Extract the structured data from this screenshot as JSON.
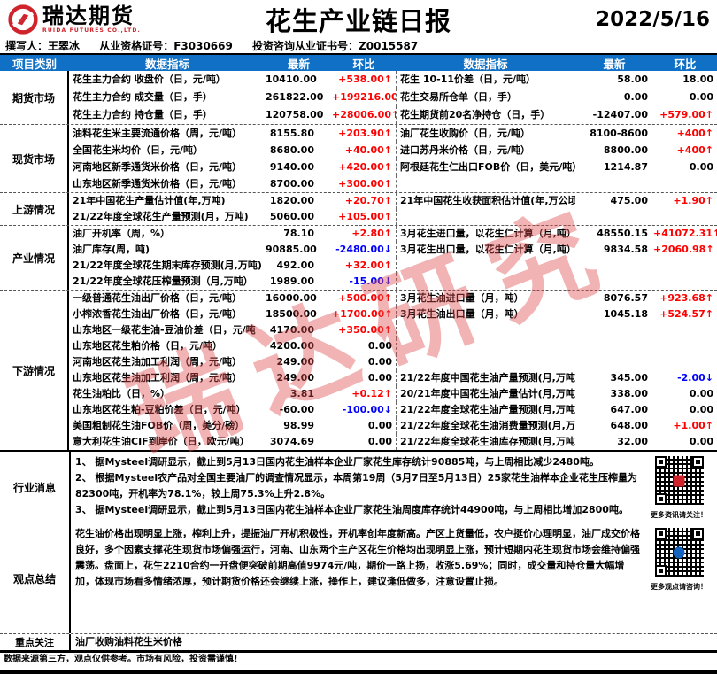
{
  "meta": {
    "title": "花生产业链日报",
    "date": "2022/5/16"
  },
  "logo": {
    "cn": "瑞达期货",
    "en": "RUIDA FUTURES CO.,LTD."
  },
  "byline": {
    "author": "撰写人：王翠冰",
    "cert": "从业资格证号：F3030669",
    "advisory": "投资咨询从业证书号：Z0015587"
  },
  "columns": {
    "category": "项目类别",
    "indicator": "数据指标",
    "latest": "最新",
    "chg": "环比"
  },
  "sections": [
    {
      "category": "期货市场",
      "rows": [
        {
          "ll": "花生主力合约 收盘价（日，元/吨）",
          "lv": "10410.00",
          "lc": "+538.00↑",
          "ld": "up",
          "rl": "花生 10-11价差（日，元/吨）",
          "rv": "58.00",
          "rc": "18.00",
          "rd": "flat"
        },
        {
          "ll": "花生主力合约 成交量（日，手）",
          "lv": "261822.00",
          "lc": "+199216.00↑",
          "ld": "up",
          "rl": "花生交易所仓单（日，手）",
          "rv": "0.00",
          "rc": "0.00",
          "rd": "flat"
        },
        {
          "ll": "花生主力合约 持仓量（日，手）",
          "lv": "120758.00",
          "lc": "+28006.00↑",
          "ld": "up",
          "rl": "花生期货前20名净持仓（日，手）",
          "rv": "-12407.00",
          "rc": "+579.00↑",
          "rd": "up"
        }
      ]
    },
    {
      "category": "现货市场",
      "rows": [
        {
          "ll": "油料花生米主要流通价格（周，元/吨）",
          "lv": "8155.80",
          "lc": "+203.90↑",
          "ld": "up",
          "rl": "油厂花生收购价（日，元/吨）",
          "rv": "8100-8600",
          "rc": "+400↑",
          "rd": "up"
        },
        {
          "ll": "全国花生米均价（日，元/吨）",
          "lv": "8680.00",
          "lc": "+40.00↑",
          "ld": "up",
          "rl": "进口苏丹米价格（日，元/吨）",
          "rv": "8800.00",
          "rc": "+400↑",
          "rd": "up"
        },
        {
          "ll": "河南地区新季通货米价格（日，元/吨）",
          "lv": "9140.00",
          "lc": "+420.00↑",
          "ld": "up",
          "rl": "阿根廷花生仁出口FOB价（日，美元/吨）",
          "rv": "1214.87",
          "rc": "0.00",
          "rd": "flat"
        },
        {
          "ll": "山东地区新季通货米价格（日，元/吨）",
          "lv": "8700.00",
          "lc": "+300.00↑",
          "ld": "up",
          "rl": "",
          "rv": "",
          "rc": "",
          "rd": "flat"
        }
      ]
    },
    {
      "category": "上游情况",
      "rows": [
        {
          "ll": "21年中国花生产量估计值(年,万吨)",
          "lv": "1820.00",
          "lc": "+20.70↑",
          "ld": "up",
          "rl": "21年中国花生收获面积估计值(年,万公顷)",
          "rv": "475.00",
          "rc": "+1.90↑",
          "rd": "up"
        },
        {
          "ll": "21/22年度全球花生产量预测(月，万吨)",
          "lv": "5060.00",
          "lc": "+105.00↑",
          "ld": "up",
          "rl": "",
          "rv": "",
          "rc": "",
          "rd": "flat"
        }
      ]
    },
    {
      "category": "产业情况",
      "rows": [
        {
          "ll": "油厂开机率（周，%）",
          "lv": "78.10",
          "lc": "+2.80↑",
          "ld": "up",
          "rl": "3月花生进口量，以花生仁计算（月,吨）",
          "rv": "48550.15",
          "rc": "+41072.31↑",
          "rd": "up"
        },
        {
          "ll": "油厂库存(周，吨)",
          "lv": "90885.00",
          "lc": "-2480.00↓",
          "ld": "down",
          "rl": "3月花生出口量，以花生仁计算（月,吨）",
          "rv": "9834.58",
          "rc": "+2060.98↑",
          "rd": "up"
        },
        {
          "ll": "21/22年度全球花生期末库存预测(月,万吨)",
          "lv": "492.00",
          "lc": "+32.00↑",
          "ld": "up",
          "rl": "",
          "rv": "",
          "rc": "",
          "rd": "flat"
        },
        {
          "ll": "21/22年度全球花压榨量预测（月,万吨）",
          "lv": "1989.00",
          "lc": "-15.00↓",
          "ld": "down",
          "rl": "",
          "rv": "",
          "rc": "",
          "rd": "flat"
        }
      ]
    },
    {
      "category": "下游情况",
      "rows": [
        {
          "ll": "一级普通花生油出厂价格（日，元/吨）",
          "lv": "16000.00",
          "lc": "+500.00↑",
          "ld": "up",
          "rl": "3月花生油进口量（月，吨）",
          "rv": "8076.57",
          "rc": "+923.68↑",
          "rd": "up"
        },
        {
          "ll": "小榨浓香花生油出厂价格（日，元/吨）",
          "lv": "18500.00",
          "lc": "+1700.00↑",
          "ld": "up",
          "rl": "3月花生油出口量（月，吨）",
          "rv": "1045.18",
          "rc": "+524.57↑",
          "rd": "up"
        },
        {
          "ll": "山东地区一级花生油-豆油价差（日，元/吨",
          "lv": "4170.00",
          "lc": "+350.00↑",
          "ld": "up",
          "rl": "",
          "rv": "",
          "rc": "",
          "rd": "flat"
        },
        {
          "ll": "山东地区花生粕价格（日，元/吨）",
          "lv": "4200.00",
          "lc": "0.00",
          "ld": "flat",
          "rl": "",
          "rv": "",
          "rc": "",
          "rd": "flat"
        },
        {
          "ll": "河南地区花生油加工利润（周，元/吨）",
          "lv": "249.00",
          "lc": "0.00",
          "ld": "flat",
          "rl": "",
          "rv": "",
          "rc": "",
          "rd": "flat"
        },
        {
          "ll": "山东地区花生油加工利润（周，元/吨）",
          "lv": "249.00",
          "lc": "0.00",
          "ld": "flat",
          "rl": "21/22年度中国花生油产量预测(月,万吨)",
          "rv": "345.00",
          "rc": "-2.00↓",
          "rd": "down"
        },
        {
          "ll": "花生油粕比（日，%）",
          "lv": "3.81",
          "lc": "+0.12↑",
          "ld": "up",
          "rl": "20/21年度中国花生油产量估计(月,万吨)",
          "rv": "338.00",
          "rc": "0.00",
          "rd": "flat"
        },
        {
          "ll": "山东地区花生粕-豆粕价差（日，元/吨）",
          "lv": "-60.00",
          "lc": "-100.00↓",
          "ld": "down",
          "rl": "21/22年度全球花生油产量预测(月,万吨)",
          "rv": "647.00",
          "rc": "0.00",
          "rd": "flat"
        },
        {
          "ll": "美国粗制花生油FOB价（周，美分/磅）",
          "lv": "98.99",
          "lc": "0.00",
          "ld": "flat",
          "rl": "21/22年度全球花生油消费量预测(月,万吨)",
          "rv": "648.00",
          "rc": "+1.00↑",
          "rd": "up"
        },
        {
          "ll": "意大利花生油CIF到岸价（日，欧元/吨）",
          "lv": "3074.69",
          "lc": "0.00",
          "ld": "flat",
          "rl": "21/22年度全球花生油库存预测(月,万吨)",
          "rv": "32.00",
          "rc": "0.00",
          "rd": "flat"
        }
      ]
    }
  ],
  "news": {
    "category": "行业消息",
    "items": [
      "1、 据Mysteel调研显示，截止到5月13日国内花生油样本企业厂家花生库存统计90885吨，与上周相比减少2480吨。",
      "2、 根据Mysteel农产品对全国主要油厂的调查情况显示，本周第19周（5月7日至5月13日）25家花生油样本企业花生压榨量为82300吨，开机率为78.1%，较上周75.3%上升2.8%。",
      "3、 据Mysteel调研显示，截止到5月13日国内花生油样本企业厂家花生油周度库存统计44900吨，与上周相比增加2800吨。"
    ]
  },
  "summary": {
    "category": "观点总结",
    "text": "花生油价格出现明显上涨，榨利上升，提振油厂开机积极性，开机率创年度新高。产区上货量低，农户挺价心理明显，油厂成交价格良好，多个因素支撑花生现货市场偏强运行，河南、山东两个主产区花生价格均出现明显上涨，预计短期内花生现货市场会维持偏强震荡。盘面上，花生2210合约一开盘便突破前期高值9974元/吨，期价一路上扬，收涨5.69%；同时，成交量和持仓量大幅增加，体现市场看多情绪浓厚，预计期货价格还会继续上涨，操作上，建议逢低做多，注意设置止损。"
  },
  "focus": {
    "category": "重点关注",
    "text": "油厂收购油料花生米价格"
  },
  "qr": {
    "top_caption": "更多资讯请关注！",
    "bottom_caption": "更多观点请咨询！"
  },
  "watermark": "瑞达研究",
  "footer": "数据来源第三方，观点仅供参考。市场有风险，投资需谨慎！",
  "colors": {
    "header_bg": "#0f70c5",
    "up": "#ff0000",
    "down": "#0000ff",
    "logo_red": "#d0242c"
  }
}
